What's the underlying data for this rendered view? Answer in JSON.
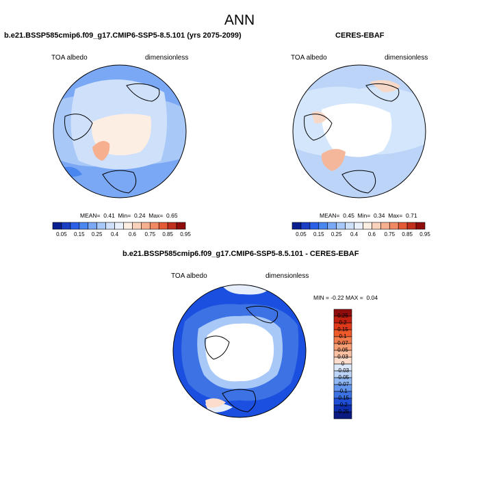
{
  "page_title": "ANN",
  "colors": {
    "land_outline": "#000000",
    "deep_blue": "#1a4fe0",
    "mid_blue": "#4a86f0",
    "light_blue": "#a8c8f8",
    "pale_blue": "#d4e6fb",
    "pale_peach": "#f6d8c8",
    "peach": "#f5b79c"
  },
  "chart_data": [
    {
      "type": "heatmap",
      "projection": "north-polar-stereographic",
      "title": "b.e21.BSSP585cmip6.f09_g17.CMIP6-SSP5-8.5.101 (yrs 2075-2099)",
      "left_label": "TOA albedo",
      "right_label": "dimensionless",
      "stats": {
        "mean_label": "MEAN=",
        "mean": "0.41",
        "min_label": "Min=",
        "min": "0.24",
        "max_label": "Max=",
        "max": "0.65"
      },
      "colorbar": {
        "levels": [
          "0.05",
          "0.15",
          "0.25",
          "0.4",
          "0.6",
          "0.75",
          "0.85",
          "0.95"
        ],
        "colors": [
          "#0a1f8f",
          "#1a3fc4",
          "#2a5fe6",
          "#4a86f0",
          "#7aa8f4",
          "#a8c8f8",
          "#cfe1fa",
          "#eaf1fc",
          "#fdeee4",
          "#fbd3bd",
          "#f7b08f",
          "#f18a64",
          "#e25a36",
          "#c0301c",
          "#8f0d0d"
        ]
      }
    },
    {
      "type": "heatmap",
      "projection": "north-polar-stereographic",
      "title": "CERES-EBAF",
      "left_label": "TOA albedo",
      "right_label": "dimensionless",
      "stats": {
        "mean_label": "MEAN=",
        "mean": "0.45",
        "min_label": "Min=",
        "min": "0.34",
        "max_label": "Max=",
        "max": "0.71"
      },
      "colorbar": {
        "levels": [
          "0.05",
          "0.15",
          "0.25",
          "0.4",
          "0.6",
          "0.75",
          "0.85",
          "0.95"
        ],
        "colors": [
          "#0a1f8f",
          "#1a3fc4",
          "#2a5fe6",
          "#4a86f0",
          "#7aa8f4",
          "#a8c8f8",
          "#cfe1fa",
          "#eaf1fc",
          "#fdeee4",
          "#fbd3bd",
          "#f7b08f",
          "#f18a64",
          "#e25a36",
          "#c0301c",
          "#8f0d0d"
        ]
      }
    },
    {
      "type": "heatmap",
      "projection": "north-polar-stereographic",
      "title": "b.e21.BSSP585cmip6.f09_g17.CMIP6-SSP5-8.5.101 - CERES-EBAF",
      "left_label": "TOA albedo",
      "right_label": "dimensionless",
      "stats": {
        "min_label": "MIN =",
        "min": "-0.22",
        "max_label": "MAX =",
        "max": "0.04"
      },
      "colorbar": {
        "orientation": "vertical",
        "levels": [
          "0.25",
          "0.2",
          "0.15",
          "0.1",
          "0.07",
          "0.05",
          "0.03",
          "0",
          "-0.03",
          "-0.05",
          "-0.07",
          "-0.1",
          "-0.15",
          "-0.2",
          "-0.25"
        ],
        "colors": [
          "#8f0d0d",
          "#c0200f",
          "#e13a1a",
          "#f05a2a",
          "#f47c4c",
          "#f79e74",
          "#f9c0a2",
          "#fcdccb",
          "#dce9fb",
          "#bcd4f8",
          "#90b8f4",
          "#6496ee",
          "#3c72e4",
          "#1f4fd4",
          "#0d2fb0",
          "#0a1a80"
        ]
      }
    }
  ]
}
